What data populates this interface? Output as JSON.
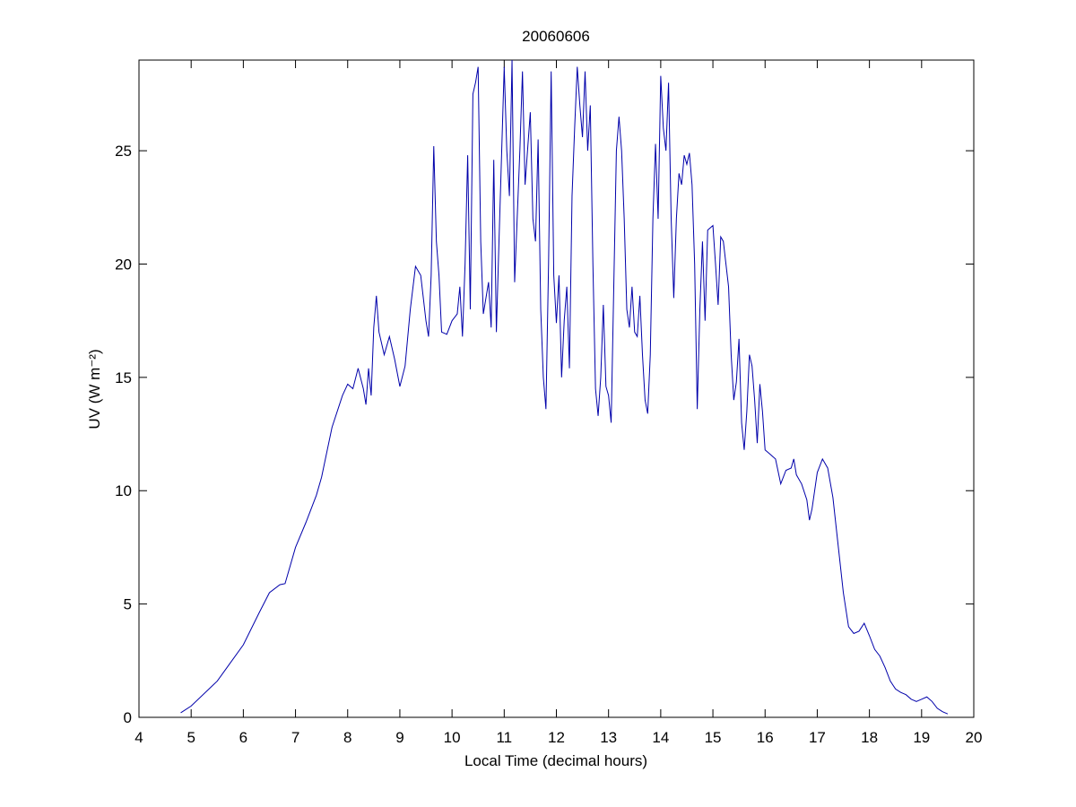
{
  "chart_data": {
    "type": "line",
    "title": "20060606",
    "xlabel": "Local Time (decimal hours)",
    "ylabel": "UV (W m⁻²)",
    "xlim": [
      4,
      20
    ],
    "xticks": [
      4,
      5,
      6,
      7,
      8,
      9,
      10,
      11,
      12,
      13,
      14,
      15,
      16,
      17,
      18,
      19,
      20
    ],
    "ylim": [
      0,
      29
    ],
    "yticks": [
      0,
      5,
      10,
      15,
      20,
      25
    ],
    "series": [
      {
        "color": "#0000aa",
        "x": [
          4.8,
          5,
          5.5,
          6,
          6.3,
          6.5,
          6.7,
          6.8,
          7,
          7.2,
          7.4,
          7.5,
          7.7,
          7.9,
          8,
          8.1,
          8.2,
          8.3,
          8.35,
          8.4,
          8.45,
          8.5,
          8.55,
          8.6,
          8.7,
          8.8,
          8.9,
          9,
          9.1,
          9.2,
          9.3,
          9.4,
          9.5,
          9.55,
          9.6,
          9.65,
          9.7,
          9.75,
          9.8,
          9.9,
          10,
          10.1,
          10.15,
          10.2,
          10.25,
          10.3,
          10.35,
          10.4,
          10.45,
          10.5,
          10.55,
          10.6,
          10.7,
          10.75,
          10.8,
          10.85,
          10.9,
          11,
          11.05,
          11.1,
          11.15,
          11.2,
          11.3,
          11.35,
          11.4,
          11.5,
          11.55,
          11.6,
          11.65,
          11.7,
          11.75,
          11.8,
          11.85,
          11.9,
          11.95,
          12,
          12.05,
          12.1,
          12.15,
          12.2,
          12.25,
          12.3,
          12.35,
          12.4,
          12.45,
          12.5,
          12.55,
          12.6,
          12.65,
          12.7,
          12.75,
          12.8,
          12.85,
          12.9,
          12.95,
          13,
          13.05,
          13.1,
          13.15,
          13.2,
          13.25,
          13.3,
          13.35,
          13.4,
          13.45,
          13.5,
          13.55,
          13.6,
          13.65,
          13.7,
          13.75,
          13.8,
          13.85,
          13.9,
          13.95,
          14,
          14.05,
          14.1,
          14.15,
          14.2,
          14.25,
          14.3,
          14.35,
          14.4,
          14.45,
          14.5,
          14.55,
          14.6,
          14.65,
          14.7,
          14.75,
          14.8,
          14.85,
          14.9,
          15,
          15.05,
          15.1,
          15.15,
          15.2,
          15.3,
          15.35,
          15.4,
          15.45,
          15.5,
          15.55,
          15.6,
          15.65,
          15.7,
          15.75,
          15.8,
          15.85,
          15.9,
          15.95,
          16,
          16.1,
          16.2,
          16.3,
          16.4,
          16.5,
          16.55,
          16.6,
          16.7,
          16.8,
          16.85,
          16.9,
          17,
          17.1,
          17.2,
          17.3,
          17.4,
          17.5,
          17.6,
          17.7,
          17.8,
          17.9,
          18,
          18.1,
          18.2,
          18.3,
          18.4,
          18.5,
          18.6,
          18.7,
          18.8,
          18.9,
          19,
          19.1,
          19.2,
          19.3,
          19.4,
          19.5
        ],
        "values": [
          0.2,
          0.5,
          1.6,
          3.2,
          4.6,
          5.5,
          5.85,
          5.9,
          7.5,
          8.6,
          9.8,
          10.6,
          12.8,
          14.2,
          14.7,
          14.5,
          15.4,
          14.5,
          13.8,
          15.4,
          14.2,
          17.2,
          18.6,
          17,
          16,
          16.8,
          15.8,
          14.6,
          15.5,
          18,
          19.9,
          19.5,
          17.5,
          16.8,
          19.5,
          25.2,
          21,
          19.5,
          17,
          16.9,
          17.5,
          17.8,
          19,
          16.8,
          20,
          24.8,
          18,
          27.5,
          28,
          28.7,
          21,
          17.8,
          19.2,
          17.2,
          24.6,
          17,
          21,
          28.7,
          25,
          23,
          29,
          19.2,
          25,
          28.5,
          23.5,
          26.7,
          22,
          21,
          25.5,
          18,
          15,
          13.6,
          20,
          28.5,
          19.5,
          17.4,
          19.5,
          15,
          17.5,
          19,
          15.4,
          23,
          26,
          28.7,
          27,
          25.6,
          28.5,
          25,
          27,
          20,
          14.5,
          13.3,
          15,
          18.2,
          14.6,
          14.2,
          13,
          19,
          25,
          26.5,
          25,
          22,
          18,
          17.2,
          19,
          17,
          16.8,
          18.6,
          16,
          14,
          13.4,
          16,
          22,
          25.3,
          22,
          28.3,
          26,
          25,
          28,
          22,
          18.5,
          22,
          24,
          23.5,
          24.8,
          24.4,
          24.9,
          23.5,
          20,
          13.6,
          18,
          21,
          17.5,
          21.5,
          21.7,
          20,
          18.2,
          21.2,
          21,
          19,
          16,
          14,
          14.8,
          16.7,
          13,
          11.8,
          13.5,
          16,
          15.5,
          14,
          12.1,
          14.7,
          13.5,
          11.8,
          11.6,
          11.4,
          10.3,
          10.9,
          11,
          11.4,
          10.7,
          10.3,
          9.6,
          8.7,
          9.2,
          10.8,
          11.4,
          11,
          9.7,
          7.6,
          5.5,
          4,
          3.7,
          3.8,
          4.15,
          3.6,
          3,
          2.7,
          2.2,
          1.6,
          1.25,
          1.1,
          1,
          0.8,
          0.7,
          0.8,
          0.9,
          0.7,
          0.4,
          0.25,
          0.15
        ]
      }
    ]
  }
}
